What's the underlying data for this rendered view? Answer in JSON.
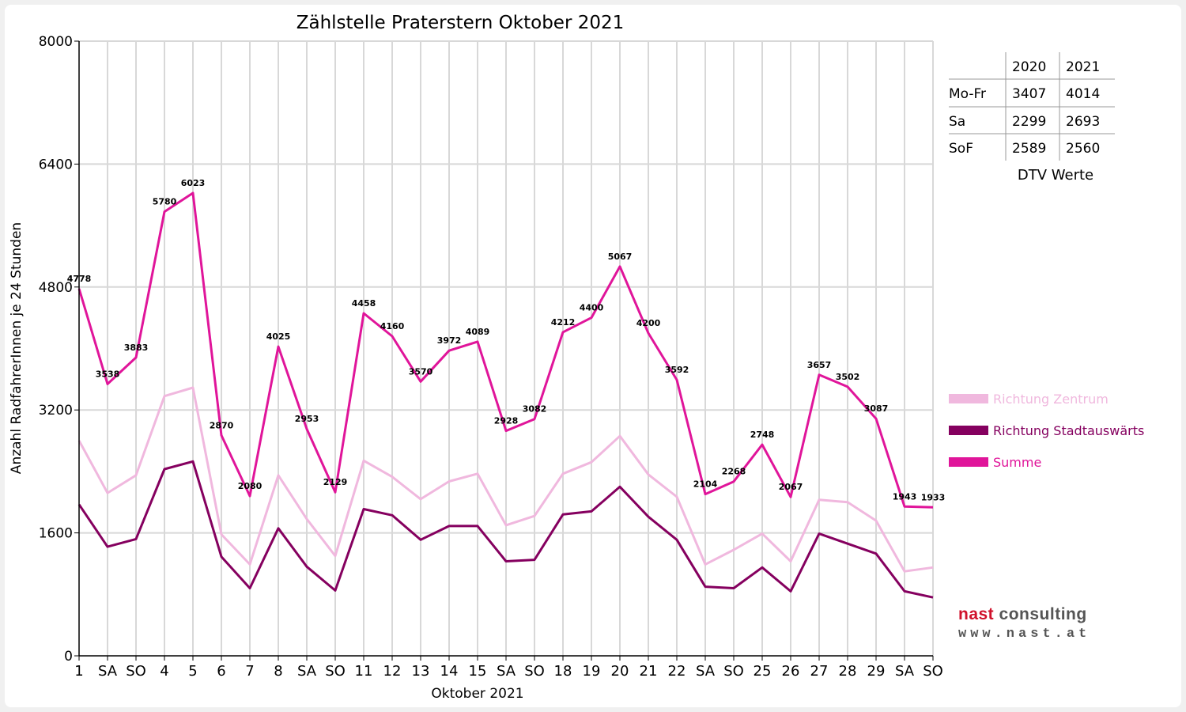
{
  "chart_data": {
    "type": "line",
    "title": "Zählstelle Praterstern Oktober 2021",
    "xlabel": "Oktober 2021",
    "ylabel": "Anzahl RadfahrerInnen je 24 Stunden",
    "ylim": [
      0,
      8000
    ],
    "yticks": [
      "0",
      "1600",
      "3200",
      "4800",
      "6400",
      "8000"
    ],
    "grid": true,
    "legend_position": "right",
    "categories": [
      "1",
      "SA",
      "SO",
      "4",
      "5",
      "6",
      "7",
      "8",
      "SA",
      "SO",
      "11",
      "12",
      "13",
      "14",
      "15",
      "SA",
      "SO",
      "18",
      "19",
      "20",
      "21",
      "22",
      "SA",
      "SO",
      "25",
      "26",
      "27",
      "28",
      "29",
      "SA",
      "SO"
    ],
    "holiday_categories": [
      2,
      9,
      16,
      23,
      25,
      30
    ],
    "series": [
      {
        "name": "Richtung Zentrum",
        "color": "#f0b8de",
        "values": [
          2800,
          2120,
          2350,
          3380,
          3490,
          1580,
          1190,
          2350,
          1780,
          1300,
          2540,
          2330,
          2040,
          2270,
          2370,
          1700,
          1820,
          2370,
          2520,
          2860,
          2360,
          2070,
          1190,
          1380,
          1590,
          1230,
          2030,
          2000,
          1760,
          1100,
          1150
        ],
        "labels": []
      },
      {
        "name": "Richtung Stadtauswärts",
        "color": "#85005f",
        "values": [
          1970,
          1420,
          1520,
          2430,
          2530,
          1290,
          880,
          1660,
          1160,
          850,
          1910,
          1830,
          1510,
          1690,
          1690,
          1230,
          1250,
          1840,
          1880,
          2200,
          1810,
          1510,
          900,
          880,
          1150,
          840,
          1590,
          1460,
          1330,
          840,
          760
        ],
        "labels": []
      },
      {
        "name": "Summe",
        "color": "#e0159a",
        "values": [
          4778,
          3538,
          3883,
          5780,
          6023,
          2870,
          2080,
          4025,
          2953,
          2129,
          4458,
          4160,
          3570,
          3972,
          4089,
          2928,
          3082,
          4212,
          4400,
          5067,
          4200,
          3592,
          2104,
          2268,
          2748,
          2067,
          3657,
          3502,
          3087,
          1943,
          1933
        ],
        "labels": [
          "4778",
          "3538",
          "3883",
          "5780",
          "6023",
          "2870",
          "2080",
          "4025",
          "2953",
          "2129",
          "4458",
          "4160",
          "3570",
          "3972",
          "4089",
          "2928",
          "3082",
          "4212",
          "4400",
          "5067",
          "4200",
          "3592",
          "2104",
          "2268",
          "2748",
          "2067",
          "3657",
          "3502",
          "3087",
          "1943",
          "1933"
        ]
      }
    ]
  },
  "dtv_table": {
    "headers": [
      "",
      "2020",
      "2021"
    ],
    "rows": [
      [
        "Mo-Fr",
        "3407",
        "4014"
      ],
      [
        "Sa",
        "2299",
        "2693"
      ],
      [
        "SoF",
        "2589",
        "2560"
      ]
    ],
    "caption": "DTV Werte"
  },
  "logo": {
    "brand_part1": "nast",
    "brand_part2": "consulting",
    "url": "www.nast.at"
  },
  "colors": {
    "holiday_tick": "#ee0000",
    "grid": "#d8d8d8",
    "table_line": "#999999"
  }
}
